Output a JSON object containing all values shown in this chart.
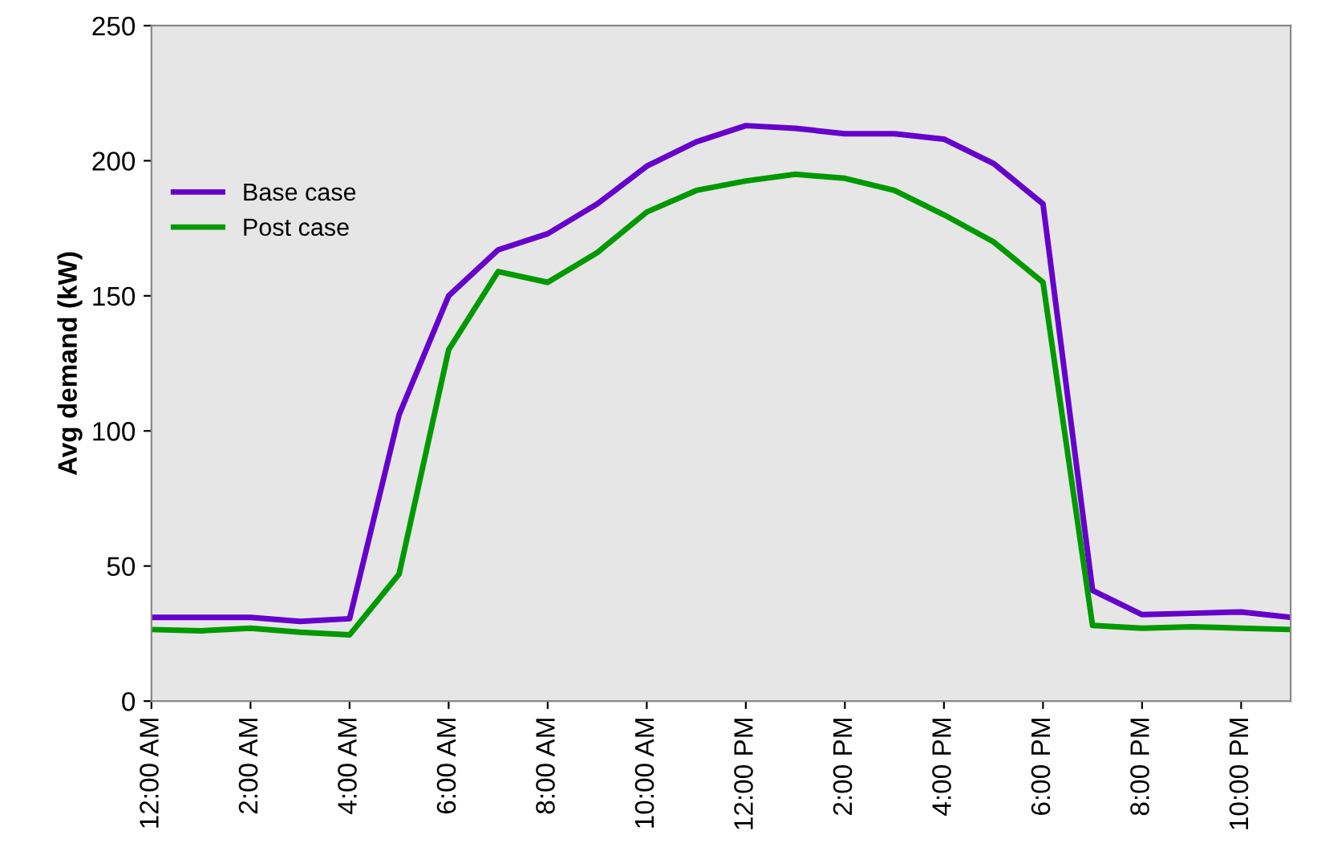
{
  "chart_data": {
    "type": "line",
    "ylabel": "Avg demand (kW)",
    "x": [
      0,
      1,
      2,
      3,
      4,
      5,
      6,
      7,
      8,
      9,
      10,
      11,
      12,
      13,
      14,
      15,
      16,
      17,
      18,
      19,
      20,
      21,
      22,
      23
    ],
    "series": [
      {
        "name": "Base case",
        "color": "#6600cc",
        "values": [
          31,
          31,
          31,
          29.5,
          30.5,
          106,
          150,
          167,
          173,
          184,
          198,
          207,
          213,
          212,
          210,
          210,
          208,
          199,
          184,
          41,
          32,
          32.5,
          33,
          31
        ]
      },
      {
        "name": "Post case",
        "color": "#009900",
        "values": [
          26.5,
          26,
          27,
          25.5,
          24.5,
          47,
          130,
          159,
          155,
          166,
          181,
          189,
          192.5,
          195,
          193.5,
          189,
          180,
          170,
          155,
          28,
          27,
          27.5,
          27,
          26.5
        ]
      }
    ],
    "xlim": [
      0,
      23
    ],
    "xticks": [
      {
        "value": 0,
        "label": "12:00 AM"
      },
      {
        "value": 2,
        "label": "2:00 AM"
      },
      {
        "value": 4,
        "label": "4:00 AM"
      },
      {
        "value": 6,
        "label": "6:00 AM"
      },
      {
        "value": 8,
        "label": "8:00 AM"
      },
      {
        "value": 10,
        "label": "10:00 AM"
      },
      {
        "value": 12,
        "label": "12:00 PM"
      },
      {
        "value": 14,
        "label": "2:00 PM"
      },
      {
        "value": 16,
        "label": "4:00 PM"
      },
      {
        "value": 18,
        "label": "6:00 PM"
      },
      {
        "value": 20,
        "label": "8:00 PM"
      },
      {
        "value": 22,
        "label": "10:00 PM"
      }
    ],
    "ylim": [
      0,
      250
    ],
    "yticks": [
      0,
      50,
      100,
      150,
      200,
      250
    ],
    "grid": false,
    "legend": "top left",
    "marker": "none",
    "line_style": "solid"
  }
}
